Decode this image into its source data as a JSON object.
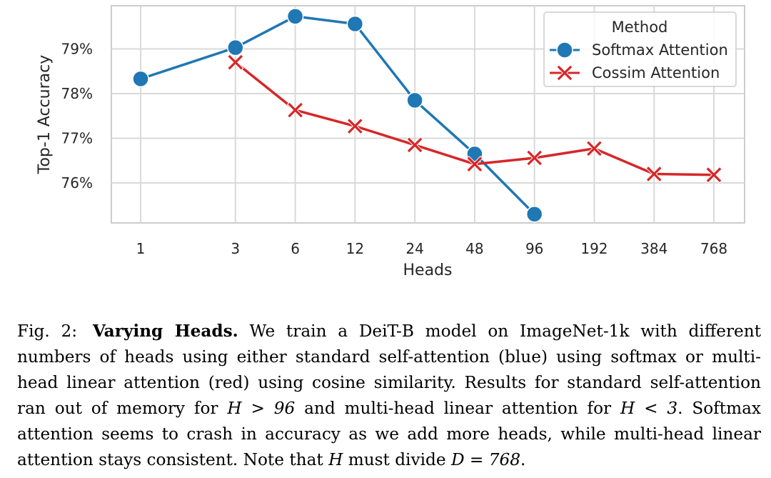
{
  "chart_data": {
    "type": "line",
    "xlabel": "Heads",
    "ylabel": "Top-1 Accuracy",
    "x_scale": "categorical-log",
    "categories": [
      "1",
      "3",
      "6",
      "12",
      "24",
      "48",
      "96",
      "192",
      "384",
      "768"
    ],
    "yticks": [
      "76%",
      "77%",
      "78%",
      "79%"
    ],
    "ytick_values": [
      76,
      77,
      78,
      79
    ],
    "ylim": [
      75.1,
      80.0
    ],
    "grid": true,
    "legend": {
      "title": "Method",
      "position": "top-right"
    },
    "series": [
      {
        "name": "Softmax Attention",
        "color": "#1f77b4",
        "marker": "circle",
        "x": [
          "1",
          "3",
          "6",
          "12",
          "24",
          "48",
          "96"
        ],
        "values": [
          78.33,
          79.03,
          79.73,
          79.56,
          77.85,
          76.65,
          75.3
        ]
      },
      {
        "name": "Cossim Attention",
        "color": "#d62728",
        "marker": "x",
        "x": [
          "3",
          "6",
          "12",
          "24",
          "48",
          "96",
          "192",
          "384",
          "768"
        ],
        "values": [
          78.7,
          77.63,
          77.27,
          76.85,
          76.42,
          76.56,
          76.77,
          76.2,
          76.18
        ]
      }
    ]
  },
  "caption": {
    "label": "Fig. 2:",
    "title": "Varying Heads.",
    "text1": "We train a DeiT-B model on ImageNet-1k with different numbers of heads using either standard self-attention (blue) using softmax or multi-head linear attention (red) using cosine similarity. Results for standard self-attention ran out of memory for",
    "cond1": "H > 96",
    "text2": "and multi-head linear attention for",
    "cond2": "H < 3",
    "text3": ". Softmax attention seems to crash in accuracy as we add more heads, while multi-head linear attention stays consistent. Note that",
    "var": "H",
    "text4": "must divide",
    "cond3": "D = 768",
    "end": "."
  }
}
